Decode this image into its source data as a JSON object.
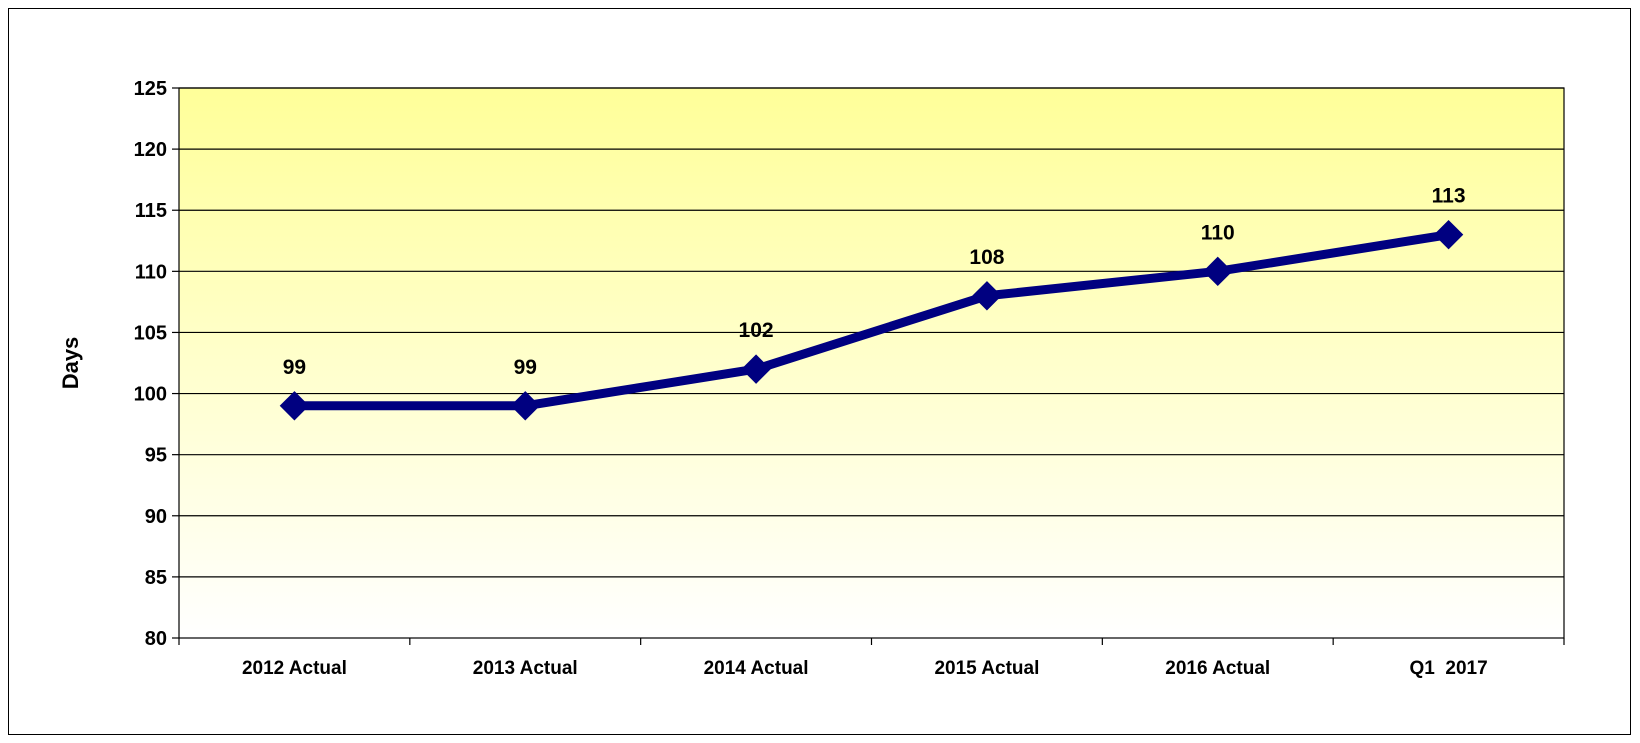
{
  "chart_data": {
    "type": "line",
    "categories": [
      "2012 Actual",
      "2013 Actual",
      "2014 Actual",
      "2015 Actual",
      "2016 Actual",
      "Q1  2017"
    ],
    "series": [
      {
        "values": [
          99,
          99,
          102,
          108,
          110,
          113
        ]
      }
    ],
    "data_labels": [
      "99",
      "99",
      "102",
      "108",
      "110",
      "113"
    ],
    "ylabel": "Days",
    "ylim": [
      80,
      125
    ],
    "yticks": [
      80,
      85,
      90,
      95,
      100,
      105,
      110,
      115,
      120,
      125
    ],
    "grid": true,
    "legend": "none",
    "marker": "diamond",
    "colors": {
      "line": "#000080",
      "plot_gradient_top": "#FFFF99",
      "plot_gradient_bottom": "#FFFFFF",
      "gridlines": "#000000"
    }
  }
}
